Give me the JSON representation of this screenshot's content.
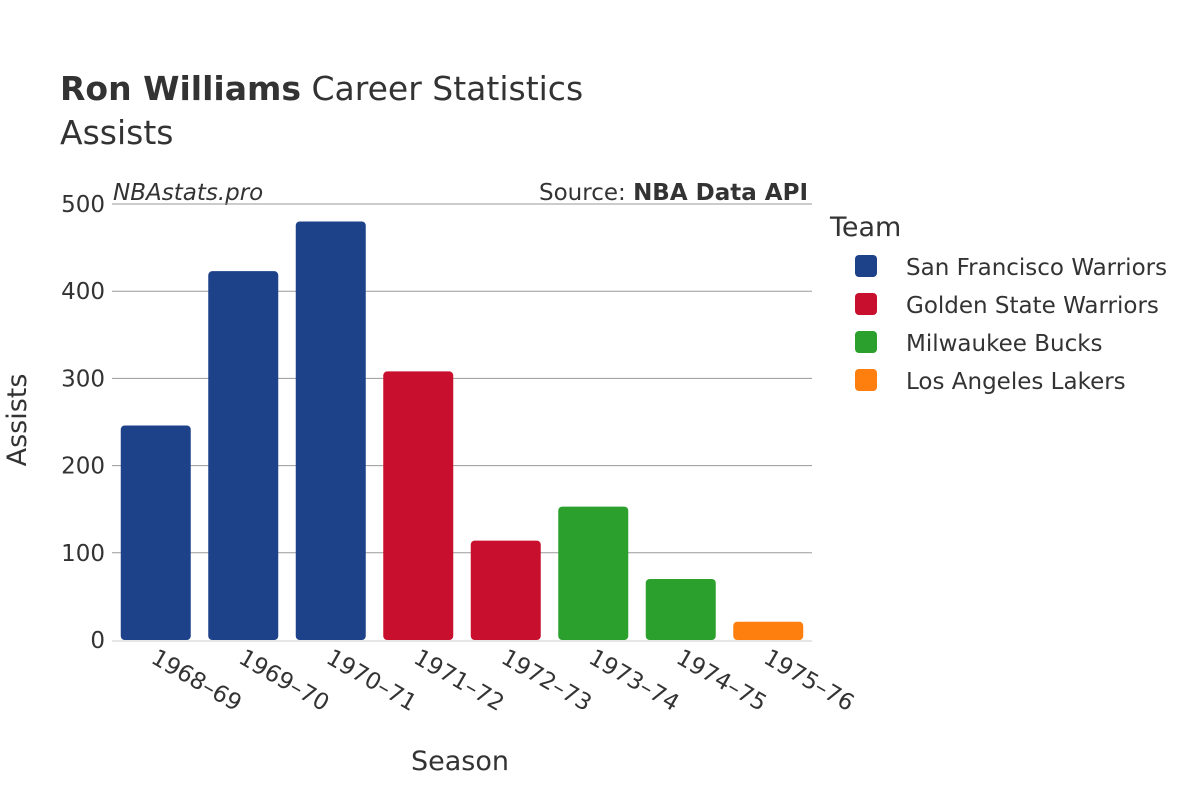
{
  "title": {
    "player": "Ron Williams",
    "rest": "Career Statistics",
    "subtitle": "Assists"
  },
  "watermark": "NBAstats.pro",
  "source": {
    "prefix": "Source: ",
    "name": "NBA Data API"
  },
  "legend_title": "Team",
  "colors": {
    "San Francisco Warriors": "#1d428a",
    "Golden State Warriors": "#c8102e",
    "Milwaukee Bucks": "#2ca02c",
    "Los Angeles Lakers": "#ff7f0e"
  },
  "chart_data": {
    "type": "bar",
    "categories": [
      "1968–69",
      "1969–70",
      "1970–71",
      "1971–72",
      "1972–73",
      "1973–74",
      "1974–75",
      "1975–76"
    ],
    "values": [
      246,
      423,
      480,
      308,
      114,
      153,
      70,
      21
    ],
    "teams": [
      "San Francisco Warriors",
      "San Francisco Warriors",
      "San Francisco Warriors",
      "Golden State Warriors",
      "Golden State Warriors",
      "Milwaukee Bucks",
      "Milwaukee Bucks",
      "Los Angeles Lakers"
    ],
    "series_names": [
      "San Francisco Warriors",
      "Golden State Warriors",
      "Milwaukee Bucks",
      "Los Angeles Lakers"
    ],
    "xlabel": "Season",
    "ylabel": "Assists",
    "ylim": [
      0,
      500
    ],
    "yticks": [
      0,
      100,
      200,
      300,
      400,
      500
    ],
    "grid": true,
    "legend_position": "right"
  }
}
